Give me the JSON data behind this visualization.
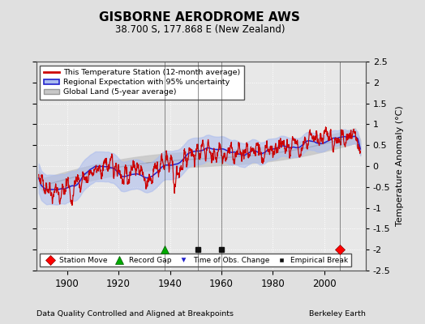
{
  "title": "GISBORNE AERODROME AWS",
  "subtitle": "38.700 S, 177.868 E (New Zealand)",
  "ylabel": "Temperature Anomaly (°C)",
  "xlabel_left": "Data Quality Controlled and Aligned at Breakpoints",
  "xlabel_right": "Berkeley Earth",
  "ylim": [
    -2.5,
    2.5
  ],
  "xlim": [
    1888,
    2016
  ],
  "yticks": [
    -2.5,
    -2,
    -1.5,
    -1,
    -0.5,
    0,
    0.5,
    1,
    1.5,
    2,
    2.5
  ],
  "xticks": [
    1900,
    1920,
    1940,
    1960,
    1980,
    2000
  ],
  "bg_color": "#e0e0e0",
  "plot_bg_color": "#e8e8e8",
  "grid_color": "#ffffff",
  "station_moves": [
    2006
  ],
  "record_gaps": [
    1938
  ],
  "time_obs_changes": [],
  "empirical_breaks": [
    1951,
    1960
  ],
  "marker_y": -2.0,
  "red_line_color": "#cc0000",
  "blue_line_color": "#2222cc",
  "blue_band_color": "#aabbee",
  "gray_line_color": "#999999",
  "gray_band_color": "#c8c8c8",
  "seed": 123
}
